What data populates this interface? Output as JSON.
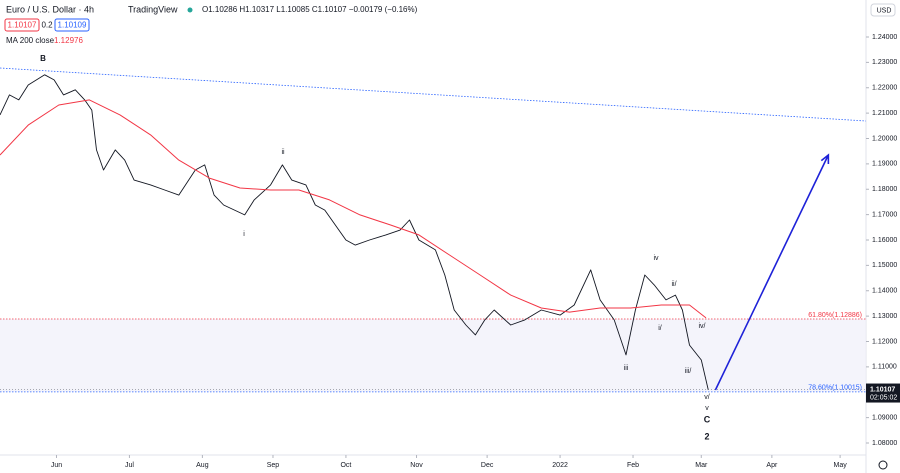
{
  "chart_data": {
    "type": "line",
    "title": "Euro / U.S. Dollar · 4h",
    "brand": "TradingView",
    "ohlc": "O1.10286 H1.10317 L1.10085 C1.10107 −0.00179 (−0.16%)",
    "bid": "1.10107",
    "spread": "0.2",
    "ask": "1.10109",
    "indicator": {
      "name": "MA 200 close",
      "value": "1.12976"
    },
    "currency": "USD",
    "last_price": {
      "value": 1.10107,
      "label": "1.10107",
      "countdown": "02:05:02"
    },
    "xlim": [
      0,
      368
    ],
    "xticks": [
      {
        "value": 24,
        "label": "Jun"
      },
      {
        "value": 55,
        "label": "Jul"
      },
      {
        "value": 86,
        "label": "Aug"
      },
      {
        "value": 116,
        "label": "Sep"
      },
      {
        "value": 147,
        "label": "Oct"
      },
      {
        "value": 177,
        "label": "Nov"
      },
      {
        "value": 207,
        "label": "Dec"
      },
      {
        "value": 238,
        "label": "2022"
      },
      {
        "value": 269,
        "label": "Feb"
      },
      {
        "value": 298,
        "label": "Mar"
      },
      {
        "value": 328,
        "label": "Apr"
      },
      {
        "value": 357,
        "label": "May"
      }
    ],
    "ylim": [
      1.0756,
      1.2446
    ],
    "yticks": [
      {
        "value": 1.08,
        "label": "1.08000"
      },
      {
        "value": 1.09,
        "label": "1.09000"
      },
      {
        "value": 1.1,
        "label": "1.10000"
      },
      {
        "value": 1.11,
        "label": "1.11000"
      },
      {
        "value": 1.12,
        "label": "1.12000"
      },
      {
        "value": 1.13,
        "label": "1.13000"
      },
      {
        "value": 1.14,
        "label": "1.14000"
      },
      {
        "value": 1.15,
        "label": "1.15000"
      },
      {
        "value": 1.16,
        "label": "1.16000"
      },
      {
        "value": 1.17,
        "label": "1.17000"
      },
      {
        "value": 1.18,
        "label": "1.18000"
      },
      {
        "value": 1.19,
        "label": "1.19000"
      },
      {
        "value": 1.2,
        "label": "1.20000"
      },
      {
        "value": 1.21,
        "label": "1.21000"
      },
      {
        "value": 1.22,
        "label": "1.22000"
      },
      {
        "value": 1.23,
        "label": "1.23000"
      },
      {
        "value": 1.24,
        "label": "1.24000"
      }
    ],
    "series": [
      {
        "color": "#131722",
        "x": [
          0,
          4,
          8,
          12,
          19,
          23,
          27,
          32,
          36,
          39,
          41,
          44,
          49,
          53,
          57,
          64,
          70,
          76,
          83,
          87,
          91,
          95,
          104,
          108,
          115,
          120,
          124,
          130,
          134,
          138,
          147,
          151,
          157,
          164,
          170,
          174,
          178,
          185,
          189,
          193,
          198,
          202,
          206,
          210,
          217,
          223,
          230,
          238,
          244,
          251,
          255,
          261,
          266,
          270,
          274,
          278,
          283,
          287,
          290,
          293,
          298,
          301
        ],
        "values": [
          1.2093,
          1.2172,
          1.2152,
          1.2211,
          1.2251,
          1.2231,
          1.2172,
          1.2192,
          1.2152,
          1.2112,
          1.1955,
          1.1876,
          1.1955,
          1.1915,
          1.1836,
          1.1817,
          1.1797,
          1.1777,
          1.1876,
          1.1896,
          1.1777,
          1.1738,
          1.1699,
          1.1758,
          1.1817,
          1.1896,
          1.1836,
          1.1817,
          1.1738,
          1.1718,
          1.16,
          1.158,
          1.16,
          1.162,
          1.1639,
          1.1679,
          1.16,
          1.1561,
          1.1462,
          1.1324,
          1.1265,
          1.1226,
          1.1285,
          1.1324,
          1.1265,
          1.1285,
          1.1324,
          1.1304,
          1.1344,
          1.1482,
          1.1364,
          1.1285,
          1.1147,
          1.1324,
          1.1462,
          1.1423,
          1.1364,
          1.1383,
          1.1324,
          1.1186,
          1.1127,
          1.1009
        ]
      },
      {
        "color": "#f23645",
        "x": [
          0,
          12,
          25,
          38,
          51,
          64,
          76,
          89,
          102,
          115,
          127,
          140,
          153,
          166,
          178,
          191,
          204,
          217,
          230,
          242,
          255,
          268,
          281,
          293,
          300
        ],
        "values": [
          1.1935,
          1.2053,
          1.2132,
          1.2152,
          1.2093,
          1.2014,
          1.1915,
          1.1844,
          1.1805,
          1.1797,
          1.1797,
          1.1758,
          1.1699,
          1.1659,
          1.162,
          1.1541,
          1.1462,
          1.1383,
          1.1332,
          1.1316,
          1.1332,
          1.1332,
          1.1344,
          1.1344,
          1.1293
        ]
      }
    ],
    "trendline": {
      "color": "#2962ff",
      "x": [
        0,
        368
      ],
      "values": [
        1.2278,
        1.2069
      ]
    },
    "projection": {
      "color": "#1e22d8",
      "x": [
        304,
        352
      ],
      "values": [
        1.1009,
        1.1935
      ]
    },
    "fib_levels": [
      {
        "label": "61.80%(1.12886)",
        "value": 1.12886,
        "color": "#f23645"
      },
      {
        "label": "78.60%(1.10015)",
        "value": 1.10015,
        "color": "#2962ff"
      }
    ],
    "wave_labels": [
      "B",
      "ii",
      "i",
      "iv",
      "ii/",
      "i/",
      "iv/",
      "iii",
      "iii/",
      "v/",
      "v",
      "C",
      "2"
    ]
  }
}
